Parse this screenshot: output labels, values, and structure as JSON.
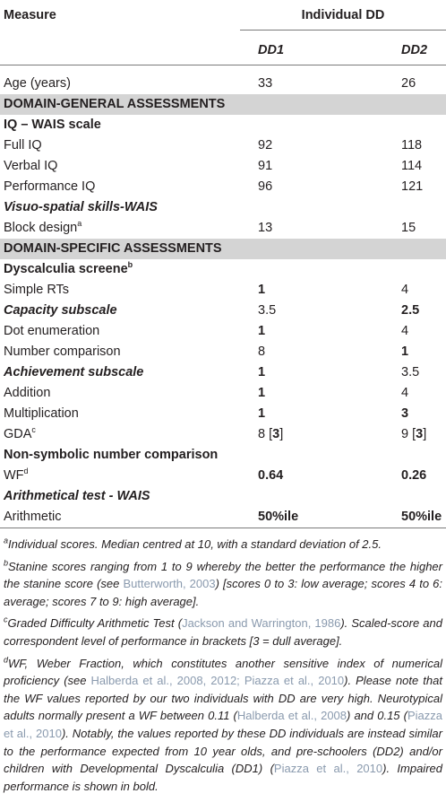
{
  "header": {
    "measure": "Measure",
    "group": "Individual DD",
    "columns": [
      "DD1",
      "DD2"
    ]
  },
  "rows": [
    {
      "style": "plain",
      "cells": [
        [
          {
            "text": "Age (years)"
          }
        ],
        [
          {
            "text": "33"
          }
        ],
        [
          {
            "text": "26"
          }
        ]
      ]
    },
    {
      "style": "section",
      "cells": [
        [
          {
            "text": "DOMAIN-GENERAL ASSESSMENTS"
          }
        ]
      ]
    },
    {
      "style": "heading",
      "cells": [
        [
          {
            "text": "IQ – WAIS scale"
          }
        ]
      ]
    },
    {
      "style": "plain",
      "cells": [
        [
          {
            "text": "Full IQ"
          }
        ],
        [
          {
            "text": "92"
          }
        ],
        [
          {
            "text": "118"
          }
        ]
      ]
    },
    {
      "style": "plain",
      "cells": [
        [
          {
            "text": "Verbal IQ"
          }
        ],
        [
          {
            "text": "91"
          }
        ],
        [
          {
            "text": "114"
          }
        ]
      ]
    },
    {
      "style": "plain",
      "cells": [
        [
          {
            "text": "Performance IQ"
          }
        ],
        [
          {
            "text": "96"
          }
        ],
        [
          {
            "text": "121"
          }
        ]
      ]
    },
    {
      "style": "heading-italic",
      "cells": [
        [
          {
            "text": "Visuo-spatial skills-WAIS"
          }
        ]
      ]
    },
    {
      "style": "plain",
      "cells": [
        [
          {
            "text": "Block design"
          },
          {
            "text": "a",
            "sup": true
          }
        ],
        [
          {
            "text": "13"
          }
        ],
        [
          {
            "text": "15"
          }
        ]
      ]
    },
    {
      "style": "section",
      "cells": [
        [
          {
            "text": "DOMAIN-SPECIFIC ASSESSMENTS"
          }
        ]
      ]
    },
    {
      "style": "heading",
      "cells": [
        [
          {
            "text": "Dyscalculia screene"
          },
          {
            "text": "b",
            "sup": true
          }
        ]
      ]
    },
    {
      "style": "plain",
      "cells": [
        [
          {
            "text": "Simple RTs"
          }
        ],
        [
          {
            "text": "1",
            "bold": true
          }
        ],
        [
          {
            "text": "4"
          }
        ]
      ]
    },
    {
      "style": "heading-italic",
      "cells": [
        [
          {
            "text": "Capacity subscale"
          }
        ],
        [
          {
            "text": "3.5"
          }
        ],
        [
          {
            "text": "2.5",
            "bold": true
          }
        ]
      ]
    },
    {
      "style": "plain",
      "cells": [
        [
          {
            "text": "Dot enumeration"
          }
        ],
        [
          {
            "text": "1",
            "bold": true
          }
        ],
        [
          {
            "text": "4"
          }
        ]
      ]
    },
    {
      "style": "plain",
      "cells": [
        [
          {
            "text": "Number comparison"
          }
        ],
        [
          {
            "text": "8"
          }
        ],
        [
          {
            "text": "1",
            "bold": true
          }
        ]
      ]
    },
    {
      "style": "heading-italic",
      "cells": [
        [
          {
            "text": "Achievement subscale"
          }
        ],
        [
          {
            "text": "1",
            "bold": true
          }
        ],
        [
          {
            "text": "3.5"
          }
        ]
      ]
    },
    {
      "style": "plain",
      "cells": [
        [
          {
            "text": "Addition"
          }
        ],
        [
          {
            "text": "1",
            "bold": true
          }
        ],
        [
          {
            "text": "4"
          }
        ]
      ]
    },
    {
      "style": "plain",
      "cells": [
        [
          {
            "text": "Multiplication"
          }
        ],
        [
          {
            "text": "1",
            "bold": true
          }
        ],
        [
          {
            "text": "3",
            "bold": true
          }
        ]
      ]
    },
    {
      "style": "plain",
      "cells": [
        [
          {
            "text": "GDA"
          },
          {
            "text": "c",
            "sup": true
          }
        ],
        [
          {
            "text": "8 ["
          },
          {
            "text": "3",
            "bold": true
          },
          {
            "text": "]"
          }
        ],
        [
          {
            "text": "9 ["
          },
          {
            "text": "3",
            "bold": true
          },
          {
            "text": "]"
          }
        ]
      ]
    },
    {
      "style": "heading",
      "cells": [
        [
          {
            "text": "Non-symbolic number comparison"
          }
        ]
      ]
    },
    {
      "style": "plain",
      "cells": [
        [
          {
            "text": "WF"
          },
          {
            "text": "d",
            "sup": true
          }
        ],
        [
          {
            "text": "0.64",
            "bold": true
          }
        ],
        [
          {
            "text": "0.26",
            "bold": true
          }
        ]
      ]
    },
    {
      "style": "heading-italic",
      "cells": [
        [
          {
            "text": "Arithmetical test - WAIS"
          }
        ]
      ]
    },
    {
      "style": "plain",
      "cells": [
        [
          {
            "text": "Arithmetic"
          }
        ],
        [
          {
            "text": "50%ile",
            "bold": true
          }
        ],
        [
          {
            "text": "50%ile",
            "bold": true
          }
        ]
      ]
    }
  ],
  "footnotes": [
    {
      "mark": "a",
      "segments": [
        {
          "text": "Individual scores. Median centred at 10, with a standard deviation of 2.5."
        }
      ]
    },
    {
      "mark": "b",
      "segments": [
        {
          "text": "Stanine scores ranging from 1 to 9 whereby the better the performance the higher the stanine score (see "
        },
        {
          "text": "Butterworth, 2003",
          "link": true
        },
        {
          "text": ") [scores 0 to 3: low average; scores 4 to 6: average; scores 7 to 9: high average]."
        }
      ]
    },
    {
      "mark": "c",
      "segments": [
        {
          "text": "Graded Difficulty Arithmetic Test ("
        },
        {
          "text": "Jackson and Warrington, 1986",
          "link": true
        },
        {
          "text": "). Scaled-score and correspondent level of performance in brackets [3 = dull average]."
        }
      ]
    },
    {
      "mark": "d",
      "segments": [
        {
          "text": "WF, Weber Fraction, which constitutes another sensitive index of numerical proficiency (see "
        },
        {
          "text": "Halberda et al., 2008, 2012; Piazza et al., 2010",
          "link": true
        },
        {
          "text": "). Please note that the WF values reported by our two individuals with DD are very high. Neurotypical adults normally present a WF between 0.11 ("
        },
        {
          "text": "Halberda et al., 2008",
          "link": true
        },
        {
          "text": ") and 0.15 ("
        },
        {
          "text": "Piazza et al., 2010",
          "link": true
        },
        {
          "text": "). Notably, the values reported by these DD individuals are instead similar to the performance expected from 10 year olds, and pre-schoolers (DD2) and/or children with Developmental Dyscalculia (DD1) ("
        },
        {
          "text": "Piazza et al., 2010",
          "link": true
        },
        {
          "text": "). Impaired performance is shown in bold."
        }
      ]
    }
  ]
}
